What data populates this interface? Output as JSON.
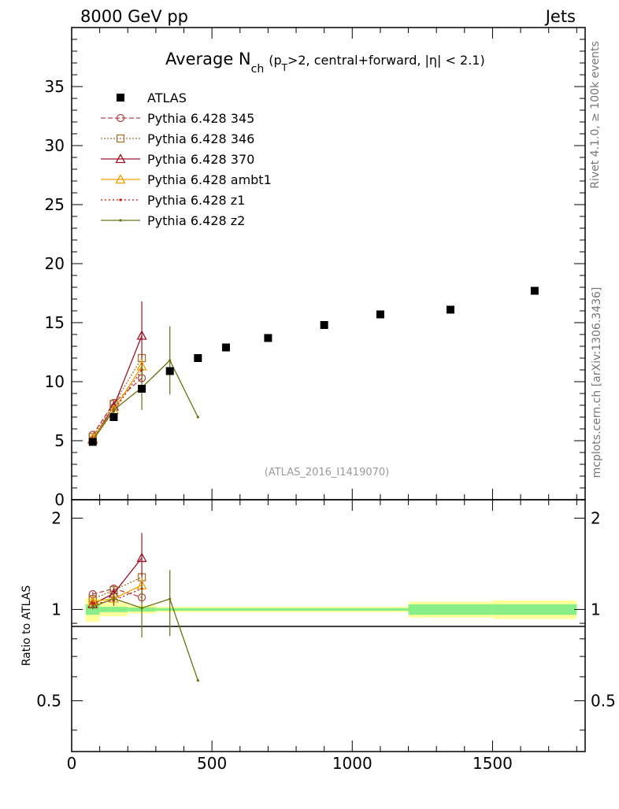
{
  "header": {
    "left": "8000 GeV pp",
    "right": "Jets"
  },
  "side_labels": {
    "rivet": "Rivet 4.1.0, ≥ 100k events",
    "mcplots": "mcplots.cern.ch [arXiv:1306.3436]"
  },
  "watermark": "(ATLAS_2016_I1419070)",
  "colors": {
    "data": "#000000",
    "p345": "#b2474a",
    "p346": "#a8702e",
    "p370": "#9a1626",
    "ambt1": "#f0a000",
    "z1": "#cc1000",
    "z2": "#6b7010",
    "band_inner": "#88ee88",
    "band_outer": "#ffff99"
  },
  "chart_data": {
    "type": "line",
    "title": "Average N_ch (p_T>2, central+forward, |η| < 2.1)",
    "title_parts": {
      "main": "Average N",
      "main_sub": "ch",
      "open": "(p",
      "open_sub": "T",
      "rest": ">2, central+forward, |η| < 2.1)"
    },
    "xlim": [
      0,
      1830
    ],
    "ylim": [
      0,
      40
    ],
    "ratio_ylim": [
      0.34,
      2.3
    ],
    "xticks": [
      0,
      500,
      1000,
      1500
    ],
    "yticks": [
      5,
      10,
      15,
      20,
      25,
      30,
      35
    ],
    "ratio_yticks": [
      0.5,
      1,
      2
    ],
    "ratio_ylabel": "Ratio to ATLAS",
    "data_series": {
      "name": "ATLAS",
      "x": [
        75,
        150,
        250,
        350,
        450,
        550,
        700,
        900,
        1100,
        1350,
        1650
      ],
      "y": [
        4.9,
        7.0,
        9.4,
        10.9,
        12.0,
        12.9,
        13.7,
        14.8,
        15.7,
        16.1,
        17.7
      ]
    },
    "band": [
      {
        "xlo": 50,
        "xhi": 100,
        "inner": [
          0.96,
          1.04
        ],
        "outer": [
          0.91,
          1.09
        ]
      },
      {
        "xlo": 100,
        "xhi": 200,
        "inner": [
          0.98,
          1.02
        ],
        "outer": [
          0.95,
          1.05
        ]
      },
      {
        "xlo": 200,
        "xhi": 300,
        "inner": [
          0.985,
          1.015
        ],
        "outer": [
          0.97,
          1.03
        ]
      },
      {
        "xlo": 300,
        "xhi": 1200,
        "inner": [
          0.99,
          1.01
        ],
        "outer": [
          0.98,
          1.02
        ]
      },
      {
        "xlo": 1200,
        "xhi": 1500,
        "inner": [
          0.96,
          1.04
        ],
        "outer": [
          0.94,
          1.06
        ]
      },
      {
        "xlo": 1500,
        "xhi": 1800,
        "inner": [
          0.96,
          1.04
        ],
        "outer": [
          0.93,
          1.07
        ]
      }
    ],
    "series": [
      {
        "key": "p345",
        "name": "Pythia 6.428 345",
        "marker": "circle-open",
        "dash": "6,3",
        "x": [
          75,
          150,
          250
        ],
        "y": [
          5.5,
          8.2,
          10.3
        ],
        "err": [
          0.1,
          0.2,
          0.4
        ]
      },
      {
        "key": "p346",
        "name": "Pythia 6.428 346",
        "marker": "square-open",
        "dash": "2,2",
        "x": [
          75,
          150,
          250
        ],
        "y": [
          5.3,
          8.1,
          12.0
        ],
        "err": [
          0.1,
          0.2,
          0.5
        ]
      },
      {
        "key": "p370",
        "name": "Pythia 6.428 370",
        "marker": "triangle-open",
        "dash": "",
        "x": [
          75,
          150,
          250
        ],
        "y": [
          5.1,
          7.9,
          13.9
        ],
        "err": [
          0.1,
          0.3,
          2.9
        ]
      },
      {
        "key": "ambt1",
        "name": "Pythia 6.428 ambt1",
        "marker": "triangle-open",
        "dash": "",
        "x": [
          75,
          150,
          250
        ],
        "y": [
          5.2,
          7.6,
          11.3
        ],
        "err": [
          0.1,
          0.3,
          0.7
        ]
      },
      {
        "key": "z1",
        "name": "Pythia 6.428 z1",
        "marker": "dot",
        "dash": "2,3",
        "x": [
          75,
          150,
          250
        ],
        "y": [
          5.1,
          7.5,
          11.0
        ],
        "err": [
          0.1,
          0.3,
          0.6
        ]
      },
      {
        "key": "z2",
        "name": "Pythia 6.428 z2",
        "marker": "dot",
        "dash": "",
        "x": [
          75,
          150,
          250,
          350,
          450
        ],
        "y": [
          5.0,
          7.6,
          9.5,
          11.8,
          7.0
        ],
        "err": [
          0.1,
          0.3,
          1.9,
          2.9,
          0
        ]
      }
    ]
  }
}
